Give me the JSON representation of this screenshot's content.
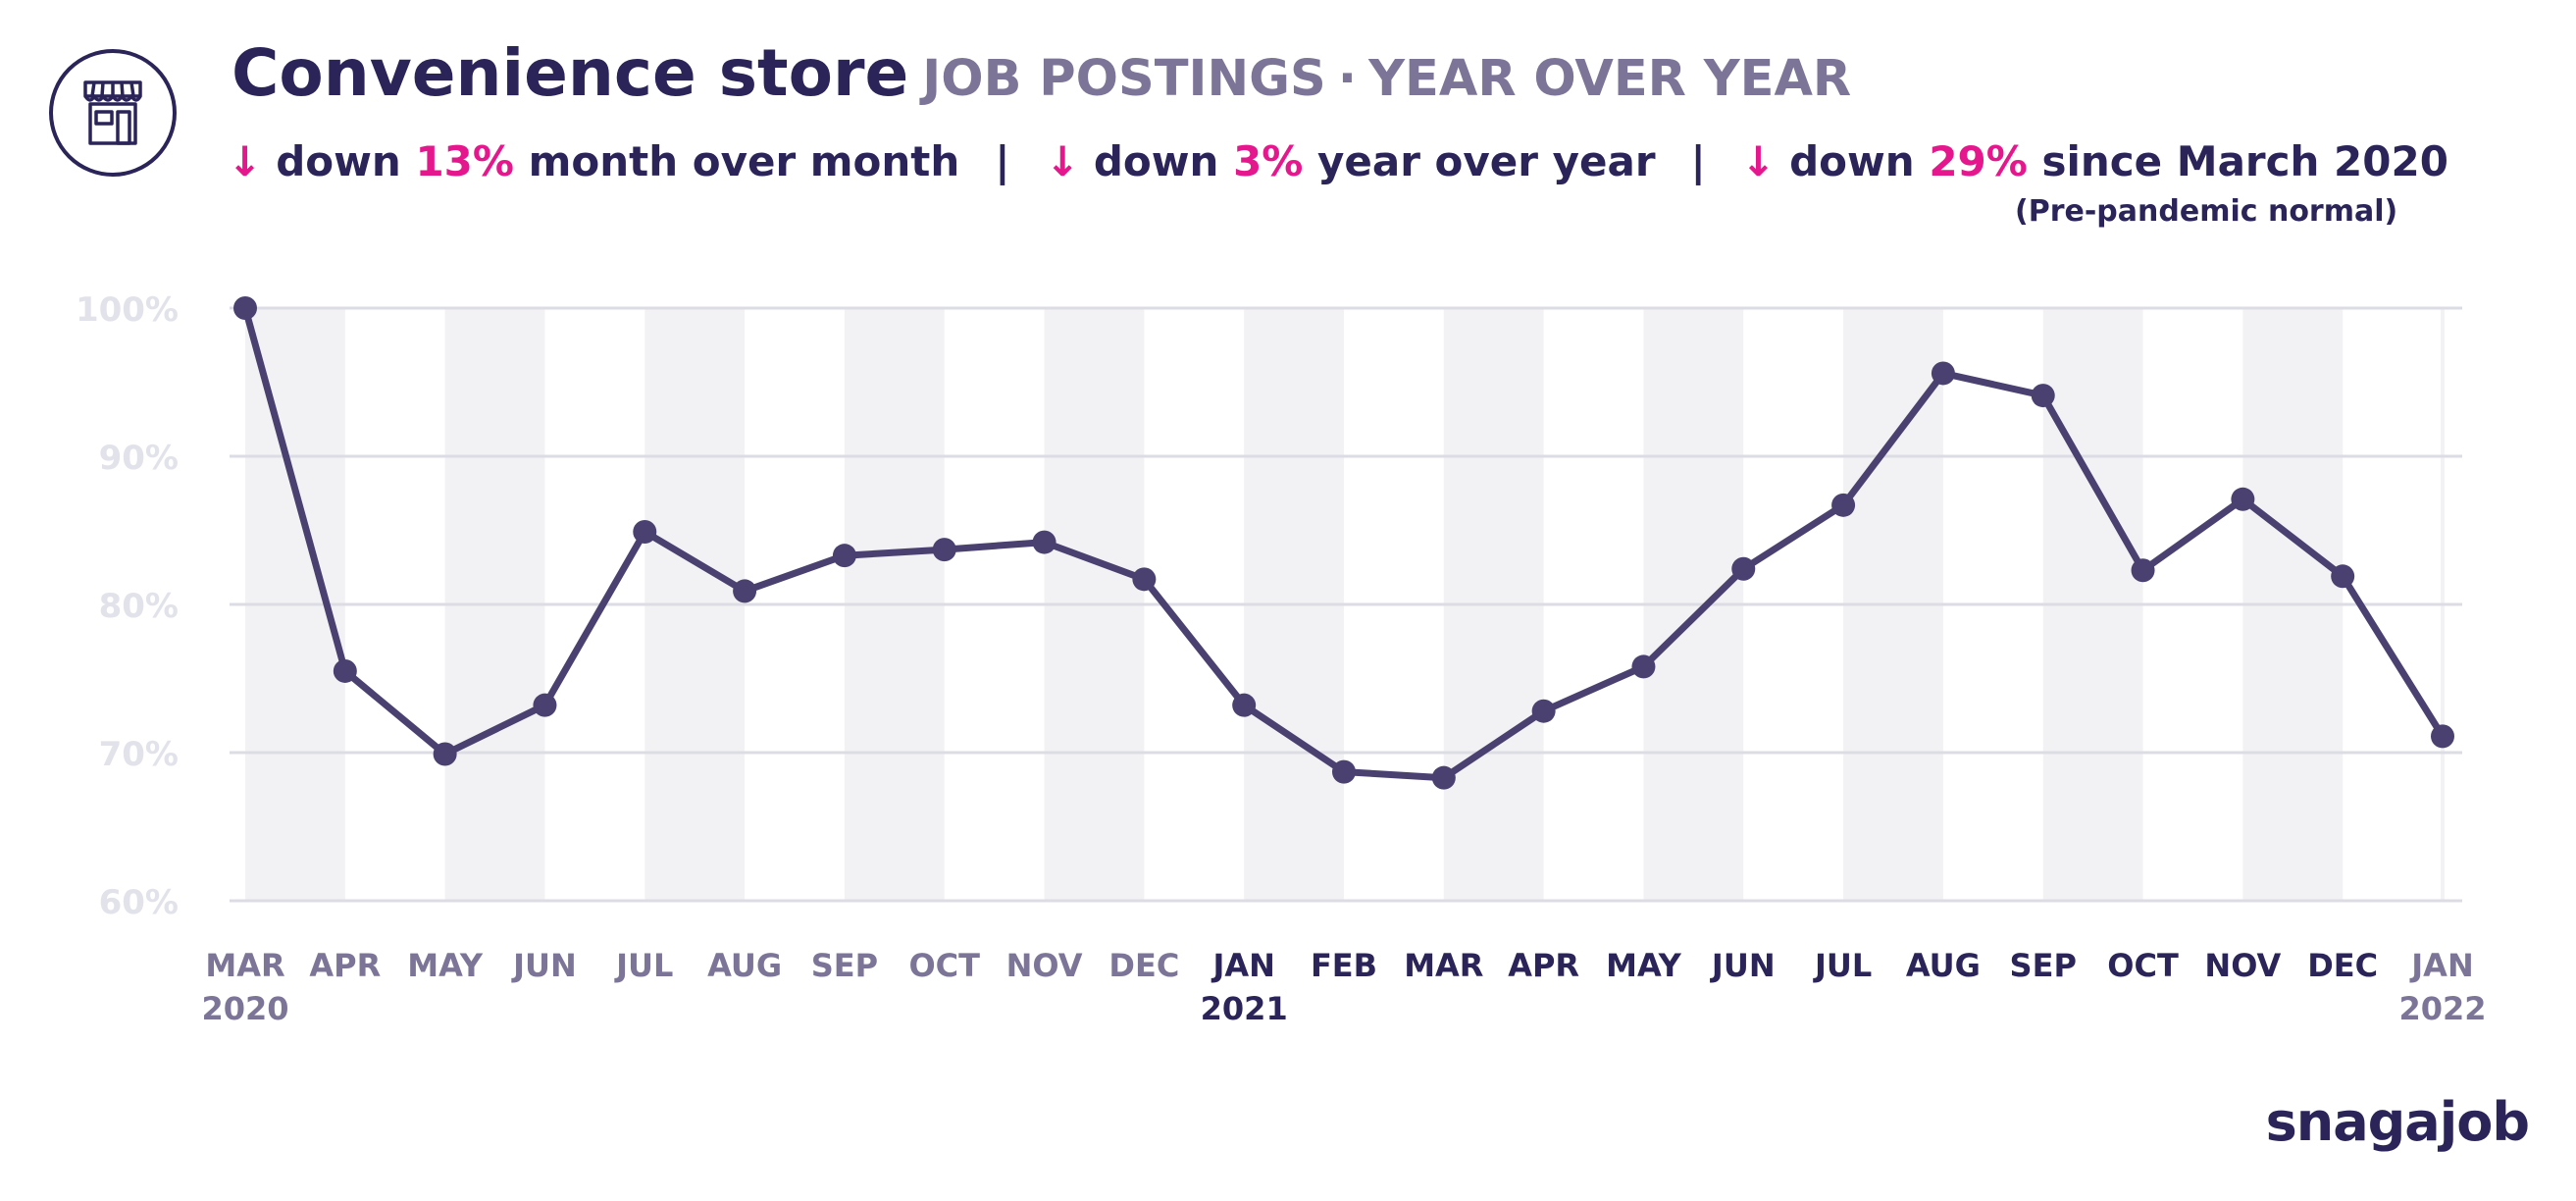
{
  "header": {
    "title": "Convenience store",
    "subtitle": "JOB POSTINGS",
    "subtitle_sep": "·",
    "subtitle_2": "YEAR OVER YEAR",
    "icon": "storefront-icon",
    "stats": [
      {
        "arrow": "↓",
        "prefix": "down",
        "value": "13%",
        "suffix": "month over month"
      },
      {
        "arrow": "↓",
        "prefix": "down",
        "value": "3%",
        "suffix": "year over year"
      },
      {
        "arrow": "↓",
        "prefix": "down",
        "value": "29%",
        "suffix": "since March 2020"
      }
    ],
    "stats_separator": "|",
    "stat_note": "(Pre-pandemic normal)"
  },
  "brand": "snagajob",
  "colors": {
    "line": "#4a4170",
    "accent": "#e5178c",
    "title": "#2a2459",
    "band": "#f2f2f5",
    "grid": "#dcdce4",
    "ytick": "#e2e2ea"
  },
  "chart_data": {
    "type": "line",
    "title": "",
    "xlabel": "",
    "ylabel": "",
    "categories": [
      "MAR",
      "APR",
      "MAY",
      "JUN",
      "JUL",
      "AUG",
      "SEP",
      "OCT",
      "NOV",
      "DEC",
      "JAN",
      "FEB",
      "MAR",
      "APR",
      "MAY",
      "JUN",
      "JUL",
      "AUG",
      "SEP",
      "OCT",
      "NOV",
      "DEC",
      "JAN"
    ],
    "year_labels": {
      "0": "2020",
      "10": "2021",
      "22": "2022"
    },
    "series": [
      {
        "values": [
          100,
          75.5,
          69.9,
          73.2,
          84.9,
          80.9,
          83.3,
          83.7,
          84.2,
          81.7,
          73.2,
          68.7,
          68.3,
          72.8,
          75.8,
          82.4,
          86.7,
          95.6,
          94.1,
          82.3,
          87.1,
          81.9,
          71.1
        ]
      }
    ],
    "ylim": [
      60,
      100
    ],
    "yticks": [
      60,
      70,
      80,
      90,
      100
    ],
    "ytick_labels": [
      "60%",
      "70%",
      "80%",
      "90%",
      "100%"
    ],
    "grid": true,
    "alternating_bands": true
  }
}
